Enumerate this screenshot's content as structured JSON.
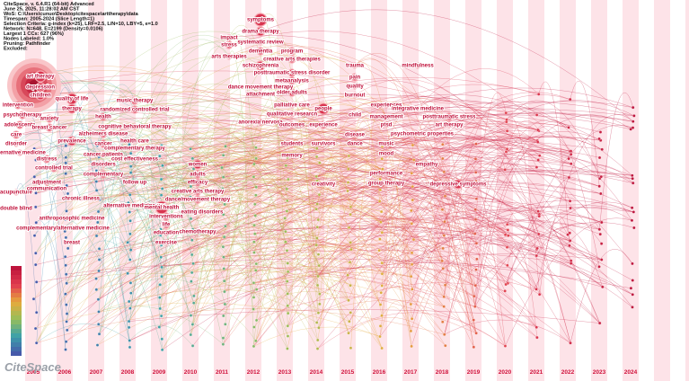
{
  "header": {
    "lines": [
      "CiteSpace, v. 6.4.R1 (64-bit) Advanced",
      "June 25, 2025, 11:28:02 AM CST",
      "WoS: C:\\Users\\cunuo\\Desktop\\citespace\\arttherapy\\data",
      "Timespan: 2005-2024 (Slice Length=1)",
      "Selection Criteria: g-index (k=25), LRF=2.5, L/N=10, LBY=5, e=1.0",
      "Network: N=648, E=2199 (Density=0.0106)",
      "Largest 1 CCs: 627 (96%)",
      "Nodes Labeled: 1.0%",
      "Pruning: Pathfinder",
      "Excluded:"
    ]
  },
  "timeline": {
    "years": [
      "2005",
      "2006",
      "2007",
      "2008",
      "2009",
      "2010",
      "2011",
      "2012",
      "2013",
      "2014",
      "2015",
      "2016",
      "2017",
      "2018",
      "2019",
      "2020",
      "2021",
      "2022",
      "2023",
      "2024"
    ]
  },
  "nodes": [
    {
      "label": "art therapy"
    },
    {
      "label": "depression"
    },
    {
      "label": "children"
    },
    {
      "label": "intervention"
    },
    {
      "label": "psychotherapy"
    },
    {
      "label": "adolescents"
    },
    {
      "label": "care"
    },
    {
      "label": "disorder"
    },
    {
      "label": "alternative medicine"
    },
    {
      "label": "acupuncture"
    },
    {
      "label": "double blind"
    },
    {
      "label": "quality of life"
    },
    {
      "label": "therapy"
    },
    {
      "label": "anxiety"
    },
    {
      "label": "breast cancer"
    },
    {
      "label": "prevalence"
    },
    {
      "label": "distress"
    },
    {
      "label": "controlled trial"
    },
    {
      "label": "adjustment"
    },
    {
      "label": "communication"
    },
    {
      "label": "anthroposophic medicine"
    },
    {
      "label": "complementary/alternative medicine"
    },
    {
      "label": "breast"
    },
    {
      "label": "health"
    },
    {
      "label": "alzheimers disease"
    },
    {
      "label": "cancer"
    },
    {
      "label": "cancer patients"
    },
    {
      "label": "disorders"
    },
    {
      "label": "complementary"
    },
    {
      "label": "chronic illness"
    },
    {
      "label": "music therapy"
    },
    {
      "label": "randomized controlled trial"
    },
    {
      "label": "cognitive behavioral therapy"
    },
    {
      "label": "health care"
    },
    {
      "label": "complementary therapy"
    },
    {
      "label": "cost effectiveness"
    },
    {
      "label": "follow up"
    },
    {
      "label": "alternative medicine use"
    },
    {
      "label": "mental health"
    },
    {
      "label": "interventions"
    },
    {
      "label": "life"
    },
    {
      "label": "education"
    },
    {
      "label": "exercise"
    },
    {
      "label": "women"
    },
    {
      "label": "adults"
    },
    {
      "label": "efficacy"
    },
    {
      "label": "creative arts therapy"
    },
    {
      "label": "dance/movement therapy"
    },
    {
      "label": "eating disorders"
    },
    {
      "label": "chemotherapy"
    },
    {
      "label": "impact"
    },
    {
      "label": "stress"
    },
    {
      "label": "arts therapies"
    },
    {
      "label": "symptoms"
    },
    {
      "label": "drama therapy"
    },
    {
      "label": "systematic review"
    },
    {
      "label": "dementia"
    },
    {
      "label": "schizophrenia"
    },
    {
      "label": "dance movement therapy"
    },
    {
      "label": "attachment"
    },
    {
      "label": "anorexia nervosa"
    },
    {
      "label": "program"
    },
    {
      "label": "creative arts therapies"
    },
    {
      "label": "posttraumatic stress disorder"
    },
    {
      "label": "metaanalysis"
    },
    {
      "label": "older adults"
    },
    {
      "label": "palliative care"
    },
    {
      "label": "qualitative research"
    },
    {
      "label": "outcomes"
    },
    {
      "label": "students"
    },
    {
      "label": "memory"
    },
    {
      "label": "people"
    },
    {
      "label": "experience"
    },
    {
      "label": "survivors"
    },
    {
      "label": "creativity"
    },
    {
      "label": "trauma"
    },
    {
      "label": "pain"
    },
    {
      "label": "quality"
    },
    {
      "label": "burnout"
    },
    {
      "label": "child"
    },
    {
      "label": "disease"
    },
    {
      "label": "dance"
    },
    {
      "label": "experiences"
    },
    {
      "label": "management"
    },
    {
      "label": "ptsd"
    },
    {
      "label": "music"
    },
    {
      "label": "mood"
    },
    {
      "label": "performance"
    },
    {
      "label": "group therapy"
    },
    {
      "label": "mindfulness"
    },
    {
      "label": "integrative medicine"
    },
    {
      "label": "empathy"
    },
    {
      "label": "psychometric properties"
    },
    {
      "label": "posttraumatic stress"
    },
    {
      "label": "art therapy"
    },
    {
      "label": "depressive symptoms"
    }
  ],
  "logo": "CiteSpace"
}
